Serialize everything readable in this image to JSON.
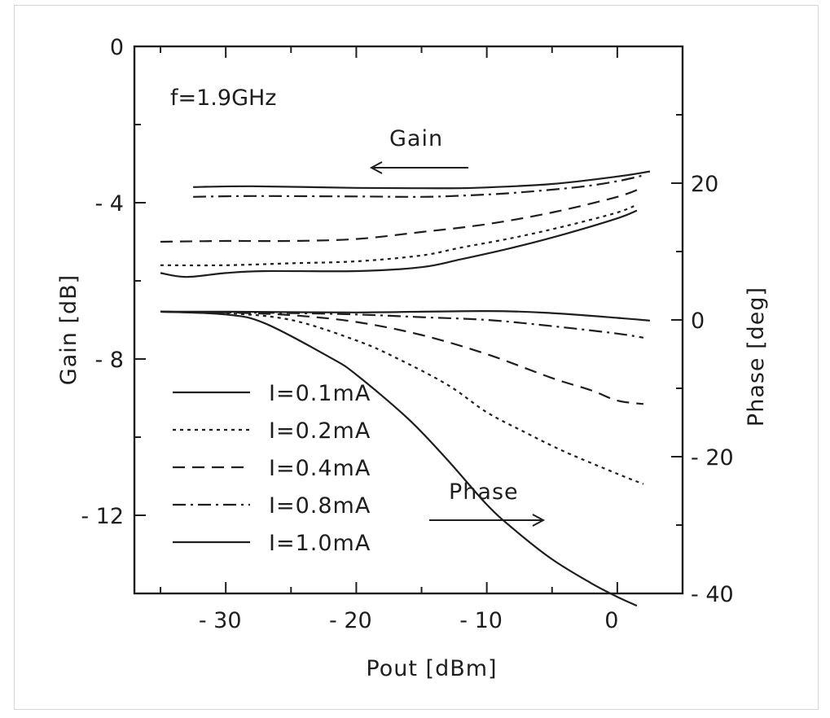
{
  "chart_data": {
    "type": "line",
    "annotation": "f=1.9GHz",
    "xlabel": "Pout [dBm]",
    "ylabel_left": "Gain [dB]",
    "ylabel_right": "Phase [deg]",
    "xlim": [
      -37,
      5
    ],
    "ylim_left": [
      -14,
      0
    ],
    "ylim_right": [
      -40,
      40
    ],
    "x_ticks": [
      -30,
      -20,
      -10,
      0
    ],
    "x_tick_labels": [
      "- 30",
      "- 20",
      "- 10",
      "0"
    ],
    "y_left_ticks": [
      0,
      -4,
      -8,
      -12
    ],
    "y_left_tick_labels": [
      "0",
      "- 4",
      "- 8",
      "- 12"
    ],
    "y_right_ticks": [
      20,
      0,
      -20,
      -40
    ],
    "y_right_tick_labels": [
      "20",
      "0",
      "- 20",
      "- 40"
    ],
    "gain_label": "Gain",
    "phase_label": "Phase",
    "legend": [
      {
        "label": "I=0.1mA",
        "style": "solid"
      },
      {
        "label": "I=0.2mA",
        "style": "dotted"
      },
      {
        "label": "I=0.4mA",
        "style": "dashed"
      },
      {
        "label": "I=0.8mA",
        "style": "dashdot"
      },
      {
        "label": "I=1.0mA",
        "style": "solid"
      }
    ],
    "gain_series": [
      {
        "name": "I=0.1mA",
        "style": "solid",
        "x": [
          -32.5,
          -28,
          -20,
          -15,
          -11,
          -5,
          0,
          2.5
        ],
        "y": [
          -3.6,
          -3.58,
          -3.62,
          -3.63,
          -3.62,
          -3.52,
          -3.33,
          -3.2
        ]
      },
      {
        "name": "I=0.8mA",
        "style": "dashdot",
        "x": [
          -32.5,
          -28,
          -20,
          -15,
          -12,
          -8,
          -3,
          0,
          2
        ],
        "y": [
          -3.85,
          -3.83,
          -3.84,
          -3.85,
          -3.82,
          -3.75,
          -3.6,
          -3.45,
          -3.3
        ]
      },
      {
        "name": "I=0.4mA",
        "style": "dashed",
        "x": [
          -35,
          -30,
          -25,
          -20,
          -15,
          -10,
          -5,
          0,
          2
        ],
        "y": [
          -5.0,
          -4.98,
          -4.98,
          -4.93,
          -4.75,
          -4.55,
          -4.25,
          -3.85,
          -3.6
        ]
      },
      {
        "name": "I=0.2mA",
        "style": "dotted",
        "x": [
          -35,
          -30,
          -25,
          -20,
          -15,
          -12,
          -8,
          -4,
          0,
          1.5
        ],
        "y": [
          -5.6,
          -5.6,
          -5.55,
          -5.5,
          -5.35,
          -5.15,
          -4.9,
          -4.6,
          -4.25,
          -4.05
        ]
      },
      {
        "name": "I=1.0mA",
        "style": "solid",
        "x": [
          -35,
          -33,
          -30,
          -27,
          -20,
          -15,
          -12,
          -8,
          -4,
          0,
          1.5
        ],
        "y": [
          -5.8,
          -5.9,
          -5.8,
          -5.75,
          -5.75,
          -5.65,
          -5.45,
          -5.15,
          -4.8,
          -4.4,
          -4.2
        ]
      }
    ],
    "phase_series": [
      {
        "name": "I=0.1mA",
        "style": "solid",
        "x": [
          -35,
          -30,
          -20,
          -10,
          -5,
          0,
          2.5
        ],
        "y": [
          1.2,
          1.2,
          1.1,
          1.3,
          1.0,
          0.3,
          -0.1
        ]
      },
      {
        "name": "I=0.8mA",
        "style": "dashdot",
        "x": [
          -35,
          -30,
          -25,
          -20,
          -15,
          -10,
          -5,
          0,
          2
        ],
        "y": [
          1.2,
          1.1,
          1.0,
          0.8,
          0.4,
          0.0,
          -0.9,
          -2.0,
          -2.6
        ]
      },
      {
        "name": "I=0.4mA",
        "style": "dashed",
        "x": [
          -35,
          -30,
          -25,
          -20,
          -15,
          -10,
          -5,
          -2,
          0,
          2
        ],
        "y": [
          1.2,
          1.1,
          0.7,
          -0.3,
          -2.2,
          -5.0,
          -8.5,
          -10.3,
          -11.8,
          -12.3
        ]
      },
      {
        "name": "I=0.2mA",
        "style": "dotted",
        "x": [
          -35,
          -30,
          -25,
          -20,
          -17,
          -13,
          -10,
          -7,
          -4,
          0,
          2
        ],
        "y": [
          1.2,
          1.0,
          0.0,
          -3.0,
          -5.5,
          -9.5,
          -13.5,
          -16.5,
          -19.3,
          -22.5,
          -24.0
        ]
      },
      {
        "name": "I=1.0mA",
        "style": "solid",
        "x": [
          -35,
          -30,
          -27,
          -22,
          -20,
          -16,
          -13,
          -10,
          -8,
          -5,
          -2,
          0,
          1.5
        ],
        "y": [
          1.2,
          0.8,
          -0.5,
          -5.5,
          -8.0,
          -14.5,
          -20.5,
          -27.0,
          -30.5,
          -35.0,
          -38.5,
          -40.5,
          -41.8
        ]
      }
    ]
  }
}
